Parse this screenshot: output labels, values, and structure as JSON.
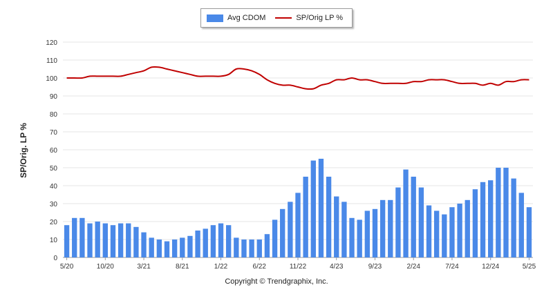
{
  "copyright": "Copyright © Trendgraphix, Inc.",
  "chart_data": {
    "type": "bar",
    "title": "",
    "xlabel": "",
    "ylabel": "SP/Orig. LP %",
    "ylim": [
      0,
      120
    ],
    "yticks": [
      0,
      10,
      20,
      30,
      40,
      50,
      60,
      70,
      80,
      90,
      100,
      110,
      120
    ],
    "grid": true,
    "legend_position": "top-center",
    "x_tick_labels": [
      {
        "index": 0,
        "label": "5/20"
      },
      {
        "index": 5,
        "label": "10/20"
      },
      {
        "index": 10,
        "label": "3/21"
      },
      {
        "index": 15,
        "label": "8/21"
      },
      {
        "index": 20,
        "label": "1/22"
      },
      {
        "index": 25,
        "label": "6/22"
      },
      {
        "index": 30,
        "label": "11/22"
      },
      {
        "index": 35,
        "label": "4/23"
      },
      {
        "index": 40,
        "label": "9/23"
      },
      {
        "index": 45,
        "label": "2/24"
      },
      {
        "index": 50,
        "label": "7/24"
      },
      {
        "index": 55,
        "label": "12/24"
      },
      {
        "index": 60,
        "label": "5/25"
      }
    ],
    "series": [
      {
        "name": "Avg CDOM",
        "type": "bar",
        "color": "#4a89e8",
        "values": [
          18,
          22,
          22,
          19,
          20,
          19,
          18,
          19,
          19,
          17,
          14,
          11,
          10,
          9,
          10,
          11,
          12,
          15,
          16,
          18,
          19,
          18,
          11,
          10,
          10,
          10,
          13,
          21,
          27,
          31,
          36,
          45,
          54,
          55,
          45,
          34,
          31,
          22,
          21,
          26,
          27,
          32,
          32,
          39,
          49,
          45,
          39,
          29,
          26,
          24,
          28,
          30,
          32,
          38,
          42,
          43,
          50,
          50,
          44,
          36,
          28
        ]
      },
      {
        "name": "SP/Orig LP %",
        "type": "line",
        "color": "#c00000",
        "values": [
          100,
          100,
          100,
          101,
          101,
          101,
          101,
          101,
          102,
          103,
          104,
          106,
          106,
          105,
          104,
          103,
          102,
          101,
          101,
          101,
          101,
          102,
          105,
          105,
          104,
          102,
          99,
          97,
          96,
          96,
          95,
          94,
          94,
          96,
          97,
          99,
          99,
          100,
          99,
          99,
          98,
          97,
          97,
          97,
          97,
          98,
          98,
          99,
          99,
          99,
          98,
          97,
          97,
          97,
          96,
          97,
          96,
          98,
          98,
          99,
          99
        ]
      }
    ]
  }
}
